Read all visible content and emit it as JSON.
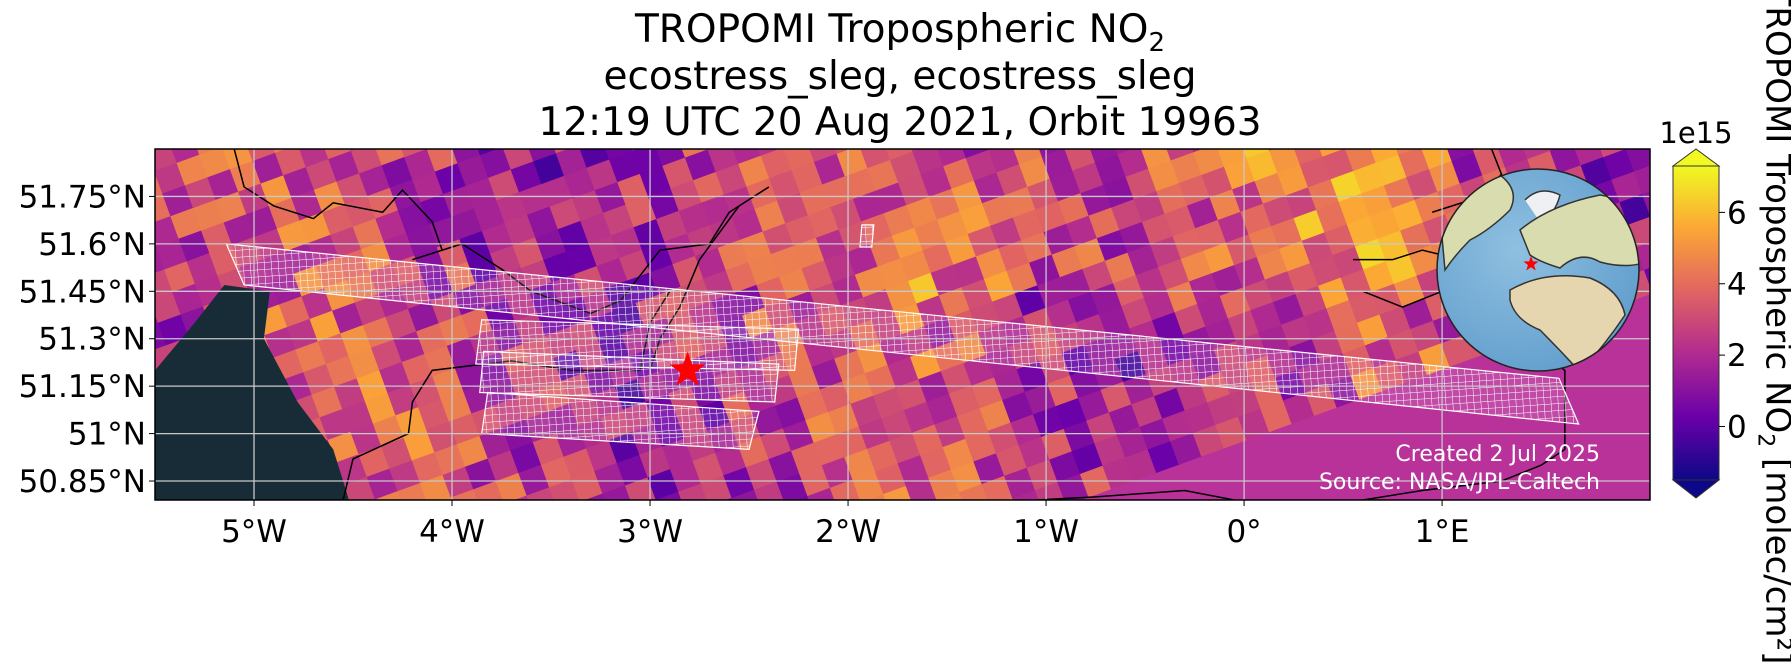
{
  "title": {
    "line1_prefix": "TROPOMI Tropospheric NO",
    "line1_sub": "2",
    "line2": "ecostress_sleg, ecostress_sleg",
    "line3": "12:19 UTC 20 Aug 2021, Orbit 19963"
  },
  "credits": {
    "created": "Created 2 Jul 2025",
    "source": "Source: NASA/JPL-Caltech"
  },
  "colorbar": {
    "exponent": "1e15",
    "label_prefix": "TROPOMI Tropospheric NO",
    "label_sub": "2",
    "label_suffix": " [molec/cm²]",
    "ticks": [
      {
        "v": 0,
        "label": "0"
      },
      {
        "v": 2,
        "label": "2"
      },
      {
        "v": 4,
        "label": "4"
      },
      {
        "v": 6,
        "label": "6"
      }
    ],
    "range": [
      -1.5,
      7.3
    ],
    "extend": "both",
    "colormap": [
      "#0d0887",
      "#6a00a8",
      "#b12a90",
      "#e16462",
      "#fca636",
      "#f0f921"
    ]
  },
  "chart_data": {
    "type": "heatmap",
    "title": "TROPOMI Tropospheric NO2 / ecostress_sleg, ecostress_sleg / 12:19 UTC 20 Aug 2021, Orbit 19963",
    "xlim": [
      -5.5,
      2.05
    ],
    "ylim": [
      50.79,
      51.9
    ],
    "grid": true,
    "x_ticks": [
      {
        "v": -5,
        "label": "5°W"
      },
      {
        "v": -4,
        "label": "4°W"
      },
      {
        "v": -3,
        "label": "3°W"
      },
      {
        "v": -2,
        "label": "2°W"
      },
      {
        "v": -1,
        "label": "1°W"
      },
      {
        "v": 0,
        "label": "0°"
      },
      {
        "v": 1,
        "label": "1°E"
      }
    ],
    "y_ticks": [
      {
        "v": 51.75,
        "label": "51.75°N"
      },
      {
        "v": 51.6,
        "label": "51.6°N"
      },
      {
        "v": 51.45,
        "label": "51.45°N"
      },
      {
        "v": 51.3,
        "label": "51.3°N"
      },
      {
        "v": 51.15,
        "label": "51.15°N"
      },
      {
        "v": 51.0,
        "label": "51°N"
      },
      {
        "v": 50.85,
        "label": "50.85°N"
      }
    ],
    "target_star": {
      "lon": -2.81,
      "lat": 51.2,
      "color": "#ff0000"
    },
    "swaths": [
      [
        [
          -5.14,
          51.6
        ],
        [
          1.59,
          51.175
        ],
        [
          1.69,
          51.03
        ],
        [
          -5.05,
          51.47
        ]
      ],
      [
        [
          -3.85,
          51.36
        ],
        [
          -2.25,
          51.33
        ],
        [
          -2.27,
          51.2
        ],
        [
          -3.88,
          51.22
        ]
      ],
      [
        [
          -3.84,
          51.26
        ],
        [
          -2.35,
          51.22
        ],
        [
          -2.37,
          51.1
        ],
        [
          -3.86,
          51.13
        ]
      ],
      [
        [
          -3.82,
          51.13
        ],
        [
          -2.45,
          51.07
        ],
        [
          -2.5,
          50.95
        ],
        [
          -3.85,
          51.0
        ]
      ],
      [
        [
          -1.93,
          51.66
        ],
        [
          -1.87,
          51.66
        ],
        [
          -1.88,
          51.59
        ],
        [
          -1.94,
          51.59
        ]
      ]
    ],
    "no_data_region": [
      [
        -5.5,
        51.2
      ],
      [
        -5.3,
        51.35
      ],
      [
        -5.15,
        51.47
      ],
      [
        -4.92,
        51.45
      ],
      [
        -4.95,
        51.3
      ],
      [
        -4.78,
        51.1
      ],
      [
        -4.6,
        50.95
      ],
      [
        -4.52,
        50.79
      ],
      [
        -5.5,
        50.79
      ]
    ],
    "inset_globe": {
      "marker": "star",
      "marker_color": "#ff0000"
    }
  }
}
